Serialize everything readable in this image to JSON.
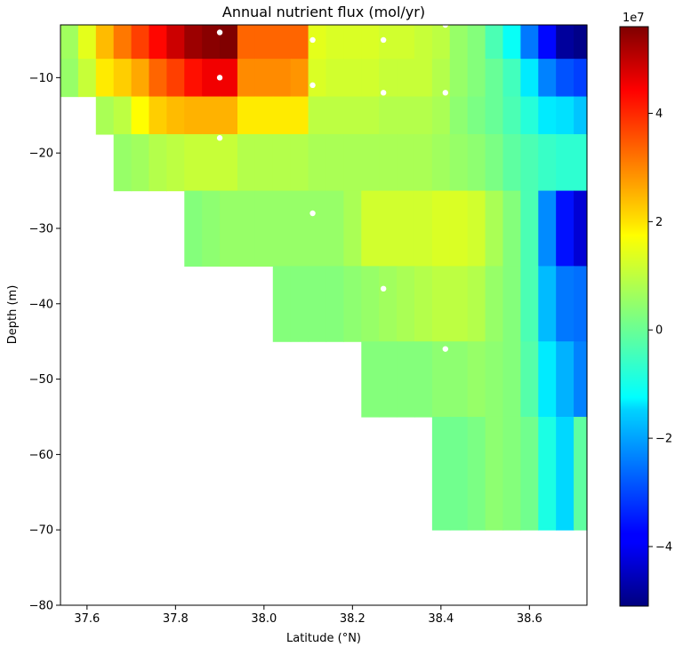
{
  "chart_data": {
    "type": "heatmap",
    "title": "Annual nutrient flux (mol/yr)",
    "xlabel": "Latitude (°N)",
    "ylabel": "Depth (m)",
    "xlim": [
      37.54,
      38.73
    ],
    "ylim": [
      -80,
      -3
    ],
    "x_ticks": [
      "37.6",
      "37.8",
      "38.0",
      "38.2",
      "38.4",
      "38.6"
    ],
    "y_ticks": [
      "−10",
      "−20",
      "−30",
      "−40",
      "−50",
      "−60",
      "−70",
      "−80"
    ],
    "x_tick_values": [
      37.6,
      37.8,
      38.0,
      38.2,
      38.4,
      38.6
    ],
    "y_tick_values": [
      -10,
      -20,
      -30,
      -40,
      -50,
      -60,
      -70,
      -80
    ],
    "colorbar": {
      "colormap": "jet",
      "range": [
        -5.1,
        5.6
      ],
      "scale_label": "1e7",
      "ticks": [
        "4",
        "2",
        "0",
        "−2",
        "−4"
      ],
      "tick_values": [
        4,
        2,
        0,
        -2,
        -4
      ]
    },
    "lat_edges": [
      37.54,
      37.58,
      37.62,
      37.66,
      37.7,
      37.74,
      37.78,
      37.82,
      37.86,
      37.9,
      37.94,
      37.98,
      38.02,
      38.06,
      38.1,
      38.14,
      38.18,
      38.22,
      38.26,
      38.3,
      38.34,
      38.38,
      38.42,
      38.46,
      38.5,
      38.54,
      38.58,
      38.62,
      38.66,
      38.7,
      38.73
    ],
    "depth_edges": [
      -3,
      -7.5,
      -12.5,
      -17.5,
      -25,
      -35,
      -45,
      -55,
      -70
    ],
    "row_start_index": [
      0,
      0,
      2,
      3,
      7,
      12,
      17,
      21
    ],
    "values": [
      [
        0.6,
        1.3,
        2.3,
        3.0,
        3.6,
        4.2,
        4.8,
        5.3,
        5.5,
        5.6,
        3.2,
        3.2,
        3.2,
        3.2,
        1.3,
        1.2,
        1.2,
        1.2,
        1.1,
        1.1,
        1.0,
        0.9,
        0.5,
        0.3,
        -0.3,
        -1.0,
        -2.5,
        -3.7,
        -4.8,
        -5.0
      ],
      [
        0.5,
        1.0,
        1.8,
        2.1,
        2.5,
        3.2,
        3.6,
        4.1,
        4.4,
        4.4,
        2.8,
        2.8,
        2.8,
        2.7,
        1.2,
        1.1,
        1.1,
        1.1,
        1.0,
        1.0,
        1.0,
        0.8,
        0.5,
        0.3,
        0.0,
        -0.4,
        -1.3,
        -2.4,
        -2.9,
        -3.1
      ],
      [
        null,
        null,
        0.7,
        0.9,
        1.6,
        2.1,
        2.3,
        2.4,
        2.4,
        2.4,
        1.8,
        1.8,
        1.8,
        1.8,
        0.9,
        0.9,
        0.9,
        0.9,
        0.8,
        0.8,
        0.8,
        0.7,
        0.4,
        0.2,
        0.0,
        -0.3,
        -0.7,
        -1.3,
        -1.4,
        -1.7
      ],
      [
        null,
        null,
        null,
        0.5,
        0.6,
        0.8,
        0.9,
        1.0,
        1.0,
        1.0,
        0.8,
        0.8,
        0.8,
        0.8,
        0.7,
        0.7,
        0.7,
        0.7,
        0.7,
        0.7,
        0.7,
        0.6,
        0.5,
        0.4,
        0.2,
        -0.1,
        -0.3,
        -0.5,
        -0.6,
        -0.6
      ],
      [
        null,
        null,
        null,
        null,
        null,
        null,
        null,
        0.3,
        0.4,
        0.5,
        0.5,
        0.5,
        0.5,
        0.5,
        0.5,
        0.5,
        0.7,
        1.1,
        1.1,
        1.1,
        1.1,
        1.2,
        1.2,
        1.1,
        0.7,
        0.3,
        -0.3,
        -2.3,
        -3.6,
        -4.2
      ],
      [
        null,
        null,
        null,
        null,
        null,
        null,
        null,
        null,
        null,
        null,
        null,
        null,
        0.3,
        0.3,
        0.3,
        0.3,
        0.4,
        0.5,
        0.6,
        0.7,
        0.8,
        0.9,
        0.9,
        0.8,
        0.5,
        0.3,
        -0.3,
        -1.8,
        -2.5,
        -2.6
      ],
      [
        null,
        null,
        null,
        null,
        null,
        null,
        null,
        null,
        null,
        null,
        null,
        null,
        null,
        null,
        null,
        null,
        null,
        0.3,
        0.3,
        0.3,
        0.3,
        0.4,
        0.4,
        0.5,
        0.4,
        0.3,
        -0.2,
        -1.3,
        -1.9,
        -2.4
      ],
      [
        null,
        null,
        null,
        null,
        null,
        null,
        null,
        null,
        null,
        null,
        null,
        null,
        null,
        null,
        null,
        null,
        null,
        null,
        null,
        null,
        null,
        0.1,
        0.1,
        0.2,
        0.4,
        0.3,
        0.1,
        -0.8,
        -1.5,
        -0.1
      ]
    ],
    "points": [
      {
        "lat": 37.9,
        "depth": -4
      },
      {
        "lat": 38.11,
        "depth": -5
      },
      {
        "lat": 38.27,
        "depth": -5
      },
      {
        "lat": 38.41,
        "depth": -3
      },
      {
        "lat": 37.9,
        "depth": -10
      },
      {
        "lat": 38.11,
        "depth": -11
      },
      {
        "lat": 38.27,
        "depth": -12
      },
      {
        "lat": 38.41,
        "depth": -12
      },
      {
        "lat": 37.9,
        "depth": -18
      },
      {
        "lat": 38.11,
        "depth": -28
      },
      {
        "lat": 38.27,
        "depth": -38
      },
      {
        "lat": 38.41,
        "depth": -46
      }
    ]
  }
}
